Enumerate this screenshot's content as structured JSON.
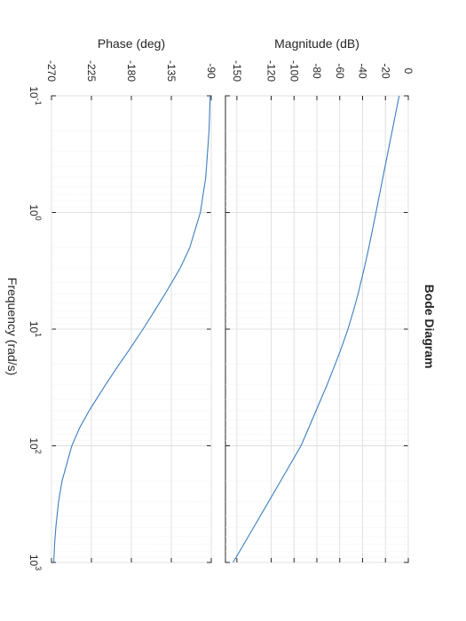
{
  "chart_data": {
    "type": "line",
    "title": "Bode Diagram",
    "xlabel": "Frequency  (rad/s)",
    "x_scale": "log",
    "xlim": [
      0.1,
      1000
    ],
    "x_ticks": [
      {
        "base": "10",
        "exp": "-1",
        "value": 0.1
      },
      {
        "base": "10",
        "exp": "0",
        "value": 1
      },
      {
        "base": "10",
        "exp": "1",
        "value": 10
      },
      {
        "base": "10",
        "exp": "2",
        "value": 100
      },
      {
        "base": "10",
        "exp": "3",
        "value": 1000
      }
    ],
    "grid": true,
    "subplots": [
      {
        "name": "magnitude",
        "ylabel": "Magnitude (dB)",
        "ylim": [
          -160,
          0
        ],
        "y_ticks": [
          0,
          -20,
          -40,
          -60,
          -80,
          -100,
          -120,
          -150
        ],
        "series": [
          {
            "x": [
              0.1,
              0.2,
              0.5,
              1,
              2,
              3,
              5,
              7,
              10,
              15,
              20,
              30,
              50,
              70,
              100,
              200,
              300,
              500,
              700,
              1000
            ],
            "y": [
              -8,
              -14.1,
              -22.2,
              -28.3,
              -34.6,
              -38.5,
              -44,
              -48.1,
              -52.8,
              -59.1,
              -64,
              -71.1,
              -80.7,
              -87.1,
              -93.9,
              -111.7,
              -122.1,
              -135.3,
              -144,
              -153.3
            ]
          }
        ]
      },
      {
        "name": "phase",
        "ylabel": "Phase (deg)",
        "ylim": [
          -270,
          -90
        ],
        "y_ticks": [
          -90,
          -135,
          -180,
          -225,
          -270
        ],
        "series": [
          {
            "x": [
              0.1,
              0.2,
              0.5,
              1,
              2,
              3,
              5,
              7,
              10,
              15,
              20,
              30,
              50,
              70,
              100,
              200,
              300,
              500,
              700,
              1000
            ],
            "y": [
              -91.2,
              -92.5,
              -96.2,
              -102.3,
              -114.2,
              -125,
              -142.1,
              -154,
              -166.9,
              -182.3,
              -193.7,
              -209.1,
              -227.6,
              -238.2,
              -247.1,
              -258.1,
              -262,
              -265.1,
              -266.5,
              -267.5
            ]
          }
        ]
      }
    ],
    "colors": {
      "line": "#3b7ec0",
      "grid": "#e0e0e0",
      "axis": "#262626"
    }
  }
}
